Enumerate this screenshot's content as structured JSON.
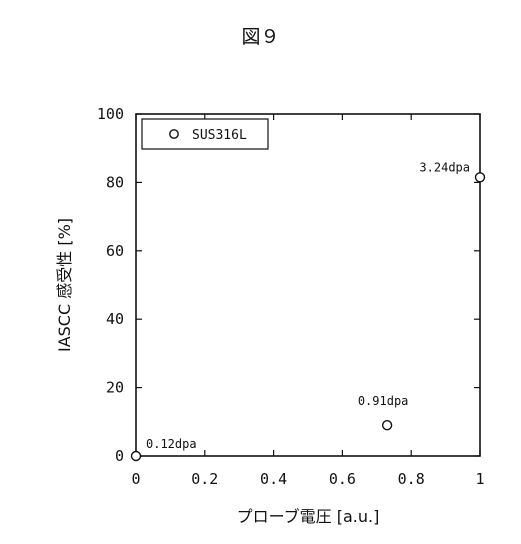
{
  "figure": {
    "title": "図９"
  },
  "chart_data": {
    "type": "scatter",
    "title": "",
    "xlabel": "プローブ電圧 [a.u.]",
    "ylabel": "IASCC 感受性 [%]",
    "xlim": [
      0,
      1
    ],
    "ylim": [
      0,
      100
    ],
    "xticks": [
      0,
      0.2,
      0.4,
      0.6,
      0.8,
      1
    ],
    "xtick_labels": [
      "0",
      "0.2",
      "0.4",
      "0.6",
      "0.8",
      "1"
    ],
    "yticks": [
      0,
      20,
      40,
      60,
      80,
      100
    ],
    "ytick_labels": [
      "0",
      "20",
      "40",
      "60",
      "80",
      "100"
    ],
    "grid": false,
    "legend_position": "top-left",
    "series": [
      {
        "name": "SUS316L",
        "marker": "open-circle",
        "color": "#111111",
        "points": [
          {
            "x": 0,
            "y": 0,
            "label": "0.12dpa"
          },
          {
            "x": 0.73,
            "y": 9,
            "label": "0.91dpa"
          },
          {
            "x": 1,
            "y": 81.5,
            "label": "3.24dpa"
          }
        ]
      }
    ]
  }
}
